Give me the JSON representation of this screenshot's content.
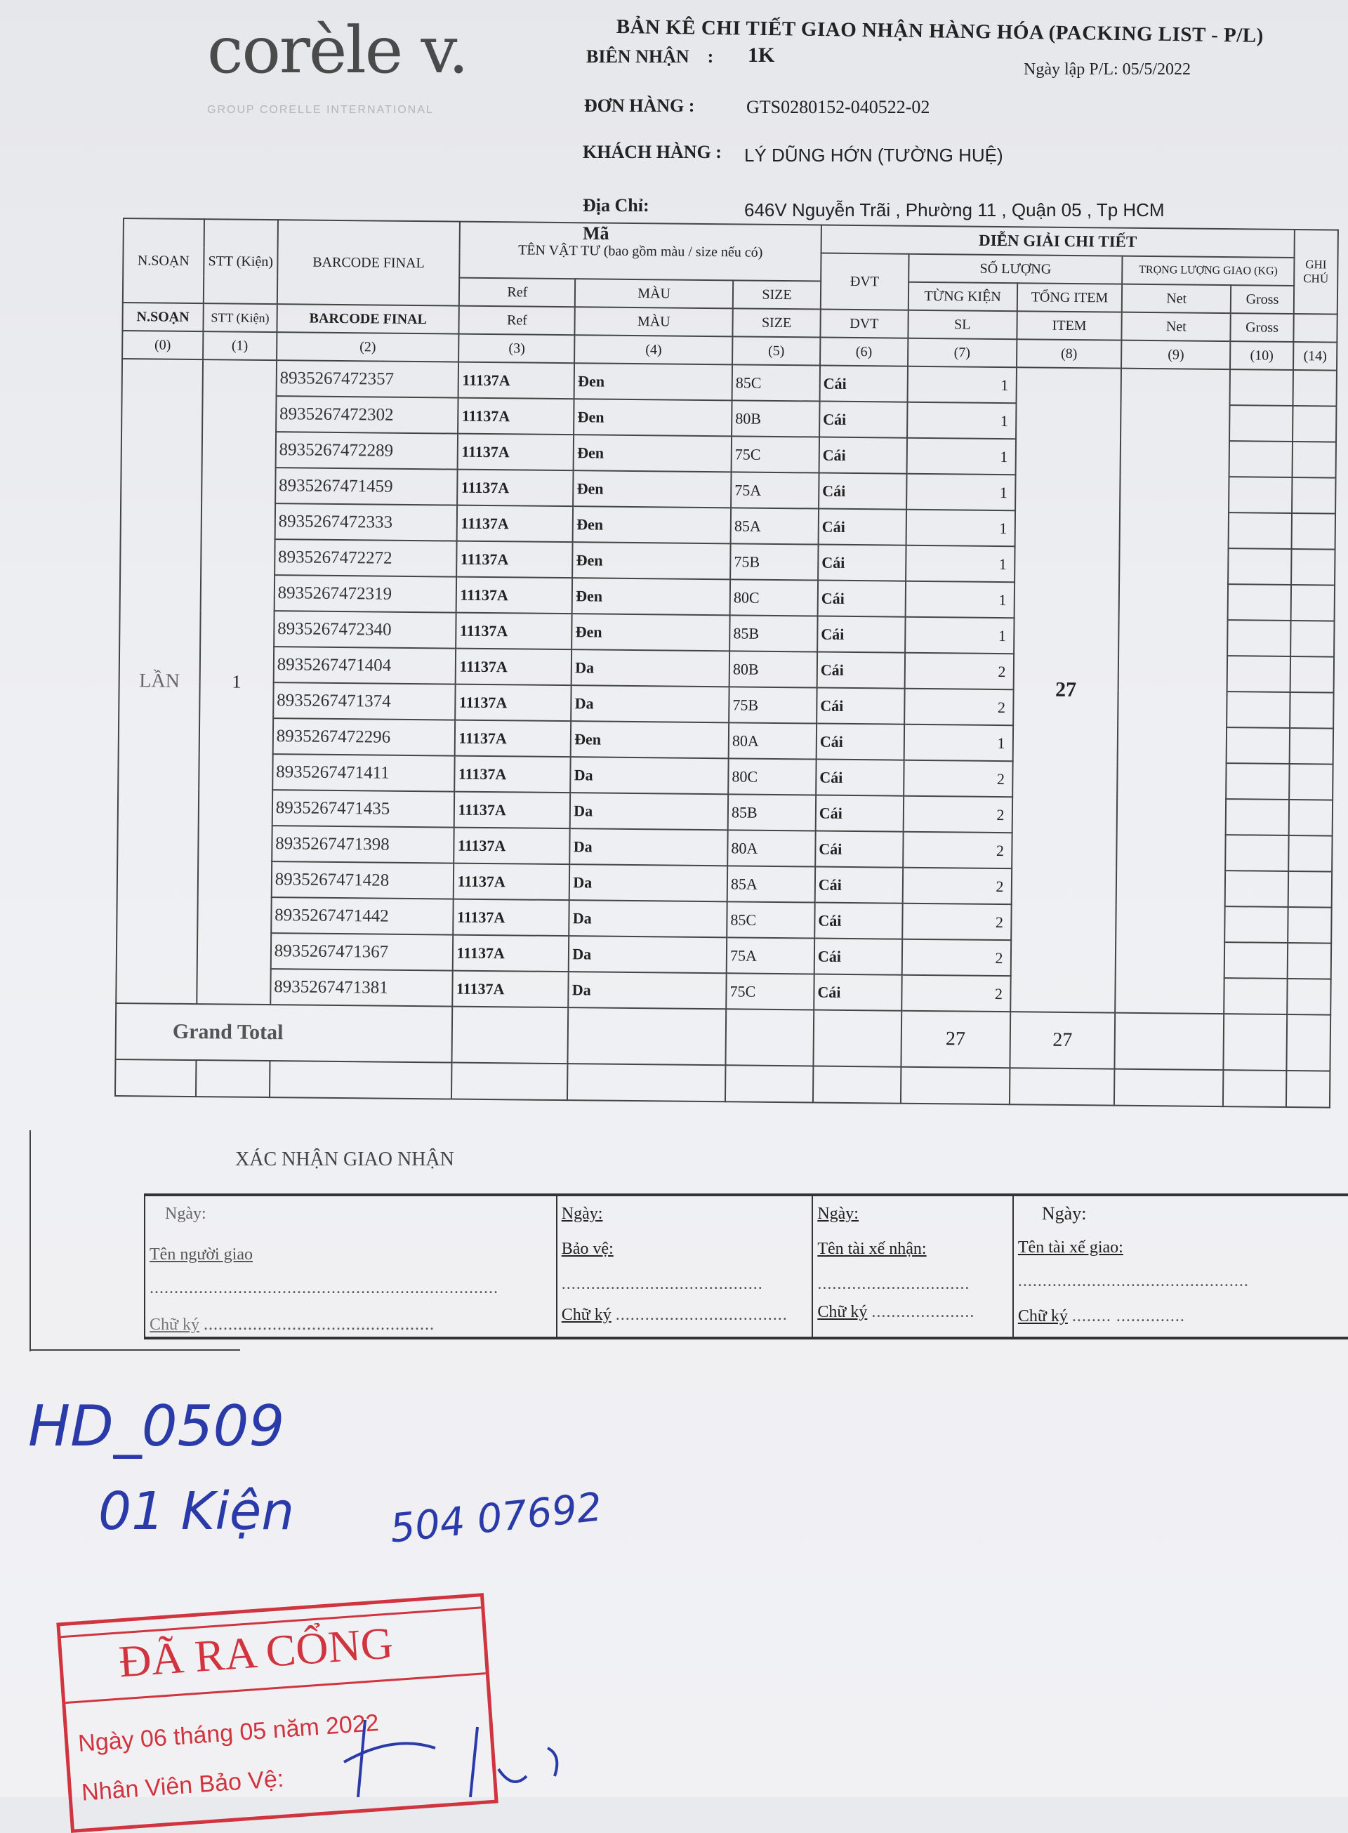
{
  "logo": {
    "brand": "corèle v.",
    "subtitle": "GROUP CORELLE INTERNATIONAL"
  },
  "header": {
    "title": "BẢN KÊ CHI TIẾT GIAO NHẬN HÀNG HÓA (PACKING LIST - P/L)",
    "bien_nhan_label": "BIÊN NHẬN    :",
    "bien_nhan_value": "1K",
    "ngay_lap": "Ngày lập P/L: 05/5/2022",
    "don_hang_label": "ĐƠN HÀNG :",
    "don_hang_value": "GTS0280152-040522-02",
    "khach_hang_label": "KHÁCH HÀNG :",
    "khach_hang_value": "LÝ DŨNG HỚN (TƯỜNG HUỆ)",
    "dia_chi_label": "Địa Chỉ:",
    "dia_chi_value": "646V Nguyễn Trãi , Phường 11 , Quận 05 , Tp HCM",
    "ma_label": "Mã"
  },
  "table": {
    "h1": {
      "nsoan": "N.SOẠN",
      "stt": "STT (Kiện)",
      "barcode": "BARCODE FINAL",
      "ten_vat_tu": "TÊN VẬT TƯ (bao gồm màu / size nếu có)",
      "dien_giai": "DIỄN GIẢI CHI TIẾT",
      "dvt": "ĐVT",
      "so_luong": "SỐ LƯỢNG",
      "trong_luong": "TRỌNG LƯỢNG GIAO (KG)",
      "ghi_chu": "GHI CHÚ",
      "ref": "Ref",
      "mau": "MÀU",
      "size": "SIZE",
      "tung_kien": "TỪNG KIỆN",
      "tong_item": "TỔNG ITEM",
      "net": "Net",
      "gross": "Gross"
    },
    "h2": {
      "nsoan": "N.SOẠN",
      "stt": "STT (Kiện)",
      "barcode": "BARCODE FINAL",
      "ref": "Ref",
      "mau": "MÀU",
      "size": "SIZE",
      "dvt": "DVT",
      "sl": "SL",
      "item": "ITEM",
      "net": "Net",
      "gross": "Gross"
    },
    "col_numbers": [
      "(0)",
      "(1)",
      "(2)",
      "(3)",
      "(4)",
      "(5)",
      "(6)",
      "(7)",
      "(8)",
      "(9)",
      "(10)",
      "(14)"
    ],
    "group_nsoan": "LẦN",
    "group_stt": "1",
    "tong_item": "27",
    "rows": [
      [
        "8935267472357",
        "11137A",
        "Đen",
        "85C",
        "Cái",
        "1"
      ],
      [
        "8935267472302",
        "11137A",
        "Đen",
        "80B",
        "Cái",
        "1"
      ],
      [
        "8935267472289",
        "11137A",
        "Đen",
        "75C",
        "Cái",
        "1"
      ],
      [
        "8935267471459",
        "11137A",
        "Đen",
        "75A",
        "Cái",
        "1"
      ],
      [
        "8935267472333",
        "11137A",
        "Đen",
        "85A",
        "Cái",
        "1"
      ],
      [
        "8935267472272",
        "11137A",
        "Đen",
        "75B",
        "Cái",
        "1"
      ],
      [
        "8935267472319",
        "11137A",
        "Đen",
        "80C",
        "Cái",
        "1"
      ],
      [
        "8935267472340",
        "11137A",
        "Đen",
        "85B",
        "Cái",
        "1"
      ],
      [
        "8935267471404",
        "11137A",
        "Da",
        "80B",
        "Cái",
        "2"
      ],
      [
        "8935267471374",
        "11137A",
        "Da",
        "75B",
        "Cái",
        "2"
      ],
      [
        "8935267472296",
        "11137A",
        "Đen",
        "80A",
        "Cái",
        "1"
      ],
      [
        "8935267471411",
        "11137A",
        "Da",
        "80C",
        "Cái",
        "2"
      ],
      [
        "8935267471435",
        "11137A",
        "Da",
        "85B",
        "Cái",
        "2"
      ],
      [
        "8935267471398",
        "11137A",
        "Da",
        "80A",
        "Cái",
        "2"
      ],
      [
        "8935267471428",
        "11137A",
        "Da",
        "85A",
        "Cái",
        "2"
      ],
      [
        "8935267471442",
        "11137A",
        "Da",
        "85C",
        "Cái",
        "2"
      ],
      [
        "8935267471367",
        "11137A",
        "Da",
        "75A",
        "Cái",
        "2"
      ],
      [
        "8935267471381",
        "11137A",
        "Da",
        "75C",
        "Cái",
        "2"
      ]
    ],
    "grand_total_label": "Grand Total",
    "grand_total_sl": "27",
    "grand_total_item": "27"
  },
  "confirm": {
    "title": "XÁC NHẬN GIAO NHẬN",
    "boxes": [
      {
        "ngay": "Ngày:",
        "name": "Tên người giao",
        "sign": "Chữ ký"
      },
      {
        "ngay": "Ngày:",
        "name": "Bảo vệ:",
        "sign": "Chữ ký"
      },
      {
        "ngay": "Ngày:",
        "name": "Tên tài xế nhận:",
        "sign": "Chữ ký"
      },
      {
        "ngay": "Ngày:",
        "name": "Tên tài xế giao:",
        "sign": "Chữ ký"
      }
    ]
  },
  "handwriting": {
    "line1": "HD_0509",
    "line2": "01 Kiện",
    "line3": "504 07692"
  },
  "stamp": {
    "title": "ĐÃ RA CỔNG",
    "date": "Ngày 06 tháng 05 năm 2022",
    "guard": "Nhân Viên Bảo Vệ:"
  },
  "colors": {
    "ink_blue": "#2a3aa8",
    "stamp_red": "#d0343f"
  }
}
